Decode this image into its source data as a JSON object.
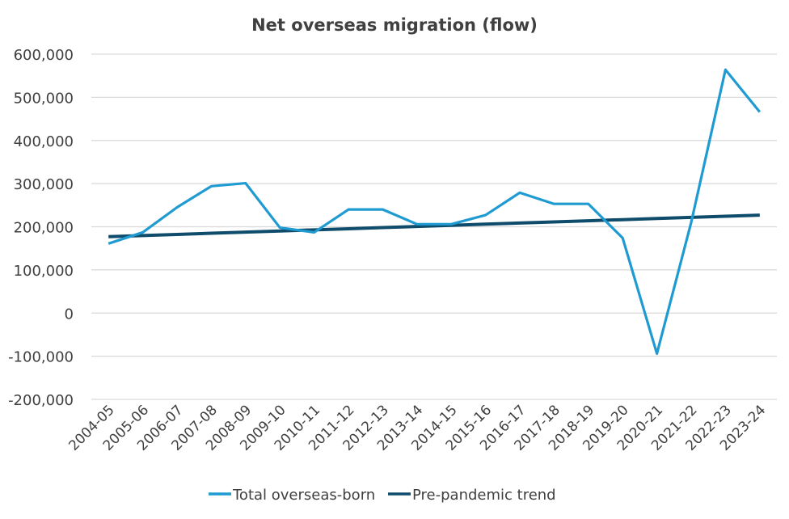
{
  "chart_data": {
    "type": "line",
    "title": "Net overseas migration (flow)",
    "xlabel": "",
    "ylabel": "",
    "ylim": [
      -200000,
      600000
    ],
    "yticks": [
      600000,
      500000,
      400000,
      300000,
      200000,
      100000,
      0,
      -100000,
      -200000
    ],
    "ytick_labels": [
      "600,000",
      "500,000",
      "400,000",
      "300,000",
      "200,000",
      "100,000",
      "0",
      "-100,000",
      "-200,000"
    ],
    "grid": true,
    "legend_position": "bottom",
    "categories": [
      "2004-05",
      "2005-06",
      "2006-07",
      "2007-08",
      "2008-09",
      "2009-10",
      "2010-11",
      "2011-12",
      "2012-13",
      "2013-14",
      "2014-15",
      "2015-16",
      "2016-17",
      "2017-18",
      "2018-19",
      "2019-20",
      "2020-21",
      "2021-22",
      "2022-23",
      "2023-24"
    ],
    "series": [
      {
        "name": "Total overseas-born",
        "color": "#1f9bd1",
        "values": [
          161000,
          187000,
          245000,
          294000,
          301000,
          198000,
          187000,
          240000,
          240000,
          206000,
          206000,
          227000,
          279000,
          253000,
          253000,
          174000,
          -94000,
          210000,
          564000,
          466000
        ]
      },
      {
        "name": "Pre-pandemic trend",
        "color": "#0f4c6b",
        "values": [
          177000,
          179600,
          182300,
          184900,
          187500,
          190200,
          192800,
          195400,
          198100,
          200700,
          203300,
          206000,
          208600,
          211200,
          213900,
          216500,
          219100,
          221800,
          224400,
          227000
        ]
      }
    ]
  }
}
